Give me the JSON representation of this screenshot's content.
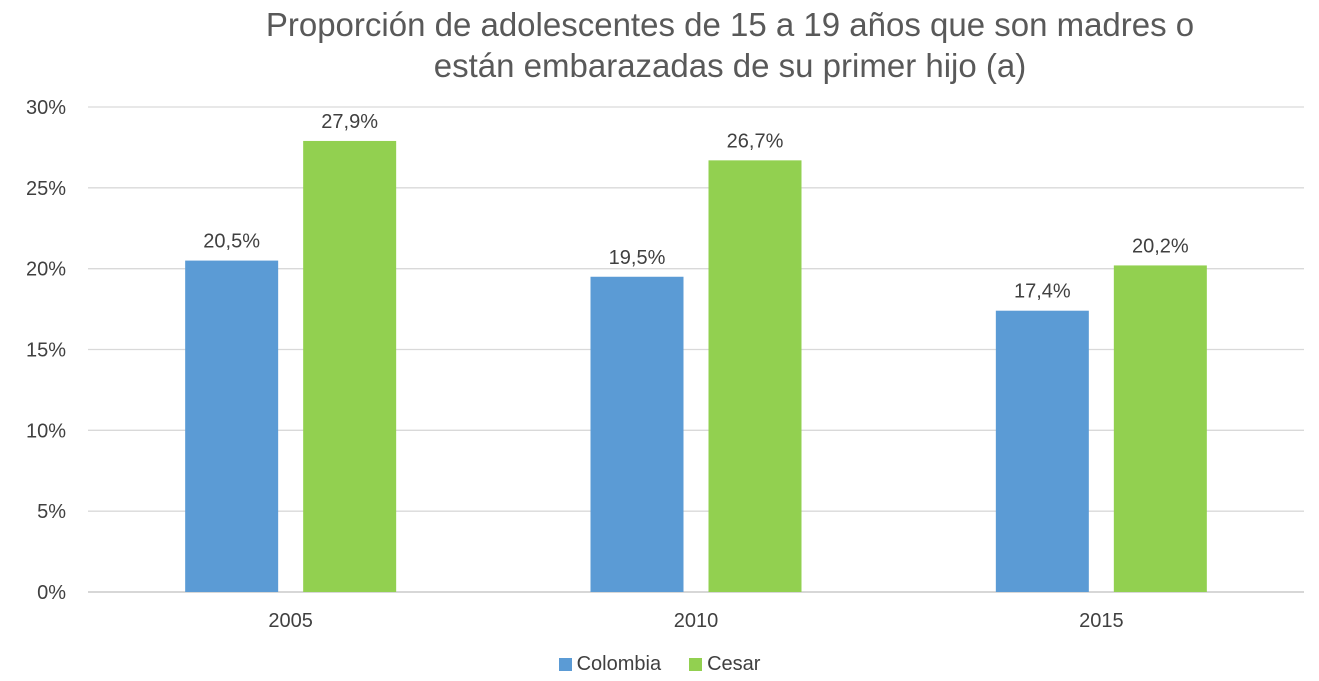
{
  "chart_data": {
    "type": "bar",
    "title_lines": [
      "Proporción de adolescentes de 15 a 19 años que son madres o",
      "están embarazadas de su primer hijo (a)"
    ],
    "categories": [
      "2005",
      "2010",
      "2015"
    ],
    "series": [
      {
        "name": "Colombia",
        "color": "#5B9BD5",
        "values": [
          20.5,
          19.5,
          17.4
        ],
        "labels": [
          "20,5%",
          "19,5%",
          "17,4%"
        ]
      },
      {
        "name": "Cesar",
        "color": "#92D050",
        "values": [
          27.9,
          26.7,
          20.2
        ],
        "labels": [
          "27,9%",
          "26,7%",
          "20,2%"
        ]
      }
    ],
    "ylim": [
      0,
      30
    ],
    "y_ticks": [
      0,
      5,
      10,
      15,
      20,
      25,
      30
    ],
    "y_tick_labels": [
      "0%",
      "5%",
      "10%",
      "15%",
      "20%",
      "25%",
      "30%"
    ],
    "grid": true,
    "legend_position": "bottom"
  }
}
